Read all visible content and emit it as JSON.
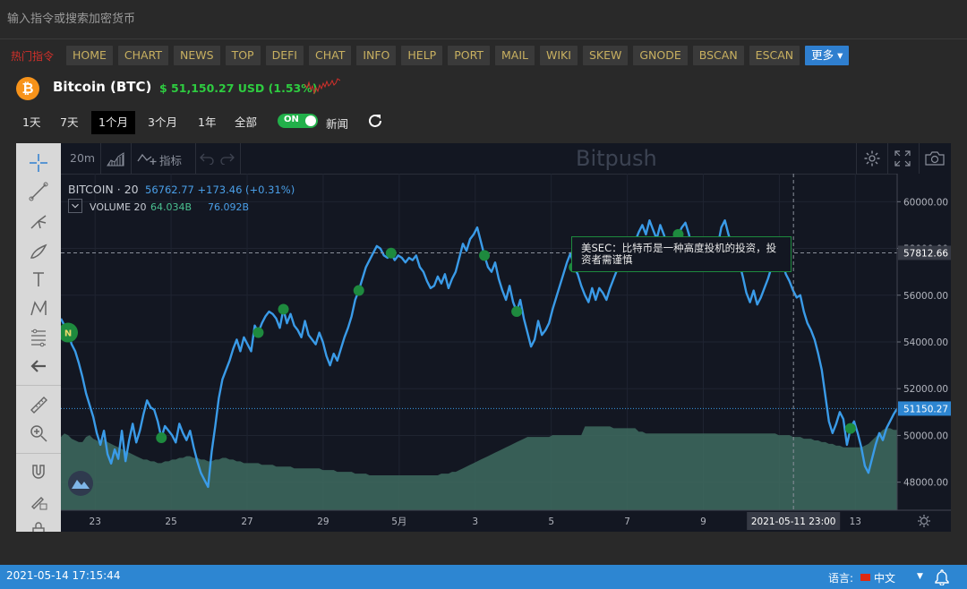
{
  "search": {
    "placeholder": "输入指令或搜索加密货币"
  },
  "hot_commands": {
    "label": "热门指令",
    "items": [
      "HOME",
      "CHART",
      "NEWS",
      "TOP",
      "DEFI",
      "CHAT",
      "INFO",
      "HELP",
      "PORT",
      "MAIL",
      "WIKI",
      "SKEW",
      "GNODE",
      "BSCAN",
      "ESCAN"
    ],
    "more_label": "更多 ▾"
  },
  "coin": {
    "logo_glyph": "₿",
    "name": "Bitcoin (BTC)",
    "price": "$ 51,150.27 USD (1.53%)",
    "accent": "#f7931a",
    "change_color": "#2ecc40"
  },
  "ranges": {
    "items": [
      "1天",
      "7天",
      "1个月",
      "3个月",
      "1年",
      "全部"
    ],
    "active": "1个月"
  },
  "news_toggle": {
    "state": "ON",
    "label": "新闻"
  },
  "chart_toolbar": {
    "interval": "20m",
    "indicators": "指标",
    "watermark": "Bitpush"
  },
  "legend": {
    "title": "BITCOIN · 20",
    "values": "56762.77  +173.46 (+0.31%)",
    "volume_label": "VOLUME 20",
    "volume_value1": "64.034B",
    "volume_value2": "76.092B"
  },
  "tooltip": {
    "text": "美SEC：比特币是一种高度投机的投资，投资者需谨慎"
  },
  "chart_data": {
    "type": "line",
    "series": [
      {
        "values": [
          55000,
          54700,
          54400,
          53900,
          53600,
          53100,
          52500,
          51800,
          51300,
          50800,
          50100,
          49600,
          50200,
          49200,
          48800,
          49400,
          49000,
          50200,
          48900,
          49800,
          50500,
          49700,
          50200,
          50900,
          51500,
          51200,
          51100,
          50600,
          49900,
          50400,
          50200,
          50000,
          49700,
          50500,
          50100,
          49800,
          50200,
          49500,
          48900,
          48400,
          48100,
          47800,
          49300,
          50400,
          51600,
          52400,
          52800,
          53200,
          53700,
          54100,
          53600,
          54200,
          53900,
          53600,
          54700,
          54400,
          54800,
          55100,
          55300,
          55200,
          55000,
          54600,
          55400,
          54800,
          55200,
          54700,
          54500,
          54200,
          54900,
          54300,
          54100,
          53900,
          54400,
          54000,
          53400,
          53000,
          53500,
          53200,
          53700,
          54200,
          54600,
          55100,
          55800,
          56200,
          56700,
          57200,
          57500,
          57800,
          58100,
          58000,
          57700,
          57600,
          57800,
          57500,
          57700,
          57600,
          57400,
          57600,
          57500,
          57700,
          57200,
          57000,
          56600,
          56300,
          56400,
          56800,
          56500,
          56900,
          56300,
          56700,
          57000,
          57600,
          58200,
          57900,
          58400,
          58600,
          58900,
          58300,
          57700,
          57200,
          57000,
          57400,
          56700,
          56200,
          55800,
          56400,
          55700,
          55300,
          55800,
          55000,
          54400,
          53800,
          54100,
          54900,
          54300,
          54500,
          54800,
          55400,
          55900,
          56400,
          56900,
          57400,
          57800,
          57200,
          56900,
          56400,
          56000,
          55700,
          56300,
          55800,
          56300,
          56100,
          55800,
          56300,
          56700,
          57100,
          57500,
          57200,
          57600,
          58000,
          58300,
          58700,
          59000,
          58600,
          59200,
          58800,
          58400,
          59000,
          58600,
          58100,
          57800,
          58300,
          58600,
          58900,
          59100,
          58600,
          57800,
          57400,
          57900,
          58300,
          57500,
          57200,
          57600,
          58100,
          58900,
          59200,
          58600,
          58100,
          57600,
          57400,
          56800,
          56100,
          55700,
          56200,
          55600,
          55900,
          56300,
          56700,
          57200,
          57500,
          57800,
          57400,
          56900,
          56600,
          56200,
          55900,
          56000,
          55300,
          54800,
          54500,
          54100,
          53500,
          52800,
          51700,
          50600,
          50100,
          50500,
          51000,
          50700,
          49600,
          50300,
          50600,
          50100,
          49500,
          48700,
          48400,
          49000,
          49600,
          50100,
          49800,
          50300,
          50600,
          50900,
          51150
        ]
      },
      {
        "name": "VOLUME",
        "values": [
          42,
          44,
          43,
          41,
          40,
          39,
          39,
          42,
          43,
          41,
          40,
          38,
          41,
          39,
          38,
          37,
          36,
          35,
          34,
          33,
          32,
          31,
          30,
          29,
          29,
          28,
          28,
          27,
          27,
          28,
          28,
          29,
          29,
          30,
          30,
          31,
          31,
          30,
          30,
          29,
          29,
          28,
          28,
          29,
          29,
          30,
          30,
          29,
          29,
          28,
          28,
          27,
          27,
          27,
          27,
          27,
          26,
          26,
          26,
          26,
          25,
          25,
          25,
          25,
          25,
          24,
          24,
          24,
          24,
          24,
          24,
          24,
          24,
          23,
          23,
          23,
          23,
          22,
          22,
          22,
          22,
          22,
          21,
          21,
          21,
          21,
          20,
          20,
          20,
          20,
          20,
          20,
          20,
          20,
          20,
          20,
          20,
          20,
          20,
          20,
          20,
          20,
          20,
          20,
          20,
          20,
          21,
          21,
          21,
          22,
          22,
          23,
          24,
          25,
          26,
          27,
          28,
          29,
          30,
          31,
          32,
          33,
          34,
          35,
          36,
          37,
          38,
          39,
          40,
          41,
          42,
          42,
          42,
          42,
          42,
          42,
          42,
          43,
          43,
          43,
          43,
          43,
          43,
          43,
          43,
          43,
          48,
          48,
          48,
          48,
          48,
          48,
          48,
          48,
          47,
          47,
          47,
          47,
          47,
          47,
          47,
          45,
          45,
          44,
          44,
          44,
          44,
          44,
          44,
          44,
          44,
          44,
          44,
          44,
          44,
          44,
          44,
          44,
          44,
          44,
          44,
          44,
          44,
          44,
          44,
          44,
          44,
          44,
          44,
          44,
          44,
          44,
          44,
          44,
          44,
          44,
          44,
          44,
          44,
          44,
          43,
          43,
          43,
          43,
          42,
          42,
          42,
          41,
          41,
          41,
          40,
          40,
          39,
          39,
          38,
          38,
          37,
          37,
          36,
          36,
          36,
          36,
          36,
          36,
          37,
          38,
          40,
          42,
          44,
          46,
          47,
          47,
          46,
          46,
          46,
          46,
          46,
          46,
          45,
          45,
          44,
          44,
          43,
          42,
          41,
          40,
          39,
          38,
          37,
          36,
          35
        ]
      }
    ],
    "y_ticks": [
      60000,
      58000,
      56000,
      54000,
      52000,
      50000,
      48000
    ],
    "ylim": [
      46800,
      61200
    ],
    "x_ticks": [
      "23",
      "25",
      "27",
      "29",
      "5月",
      "3",
      "5",
      "7",
      "9",
      "11",
      "13"
    ],
    "price_label": "51150.27",
    "crosshair_price_label": "57812.66",
    "crosshair_time_label": "2021-05-11   23:00",
    "news_marker_glyph": "N",
    "news_markers": [
      {
        "idx": 2,
        "big": true
      },
      {
        "idx": 28,
        "big": false
      },
      {
        "idx": 55,
        "big": false
      },
      {
        "idx": 62,
        "big": false
      },
      {
        "idx": 83,
        "big": false
      },
      {
        "idx": 92,
        "big": false
      },
      {
        "idx": 118,
        "big": false
      },
      {
        "idx": 127,
        "big": false
      },
      {
        "idx": 143,
        "big": false
      },
      {
        "idx": 172,
        "big": false
      },
      {
        "idx": 188,
        "big": false
      },
      {
        "idx": 220,
        "big": false
      }
    ],
    "line_color": "#3a9be8",
    "volume_color": "#3e6b5f",
    "marker_color": "#1e8a3e"
  },
  "status": {
    "time": "2021-05-14 17:15:44",
    "lang_label": "语言:",
    "lang_value": "中文"
  }
}
